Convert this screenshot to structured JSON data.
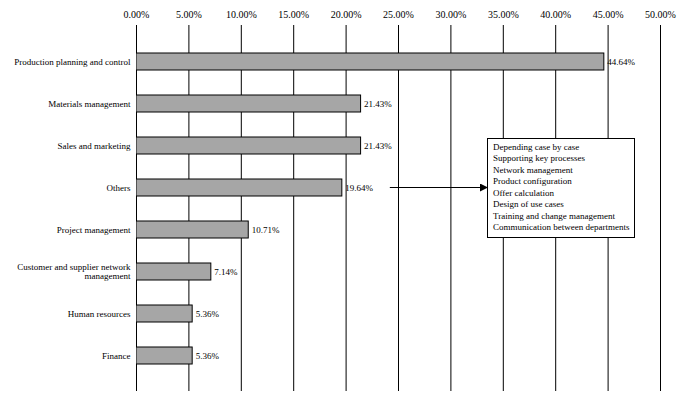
{
  "chart_data": {
    "type": "bar",
    "orientation": "horizontal",
    "categories": [
      "Production planning and control",
      "Materials management",
      "Sales and marketing",
      "Others",
      "Project management",
      "Customer and supplier network management",
      "Human resources",
      "Finance"
    ],
    "values": [
      44.64,
      21.43,
      21.43,
      19.64,
      10.71,
      7.14,
      5.36,
      5.36
    ],
    "value_labels": [
      "44.64%",
      "21.43%",
      "21.43%",
      "19.64%",
      "10.71%",
      "7.14%",
      "5.36%",
      "5.36%"
    ],
    "data_labels": true,
    "color": "#a6a6a6",
    "grid": true,
    "xlim": [
      0,
      50
    ],
    "xticks": [
      {
        "value": 0,
        "label": "0.00%"
      },
      {
        "value": 5,
        "label": "5.00%"
      },
      {
        "value": 10,
        "label": "10.00%"
      },
      {
        "value": 15,
        "label": "15.00%"
      },
      {
        "value": 20,
        "label": "20.00%"
      },
      {
        "value": 25,
        "label": "25.00%"
      },
      {
        "value": 30,
        "label": "30.00%"
      },
      {
        "value": 35,
        "label": "35.00%"
      },
      {
        "value": 40,
        "label": "40.00%"
      },
      {
        "value": 45,
        "label": "45.00%"
      },
      {
        "value": 50,
        "label": "50.00%"
      }
    ],
    "annotation": {
      "points_to": "Others",
      "lines": [
        "Depending case by case",
        "Supporting key processes",
        "Network management",
        "Product configuration",
        "Offer calculation",
        "Design of use cases",
        "Training and change management",
        "Communication between departments"
      ]
    }
  }
}
